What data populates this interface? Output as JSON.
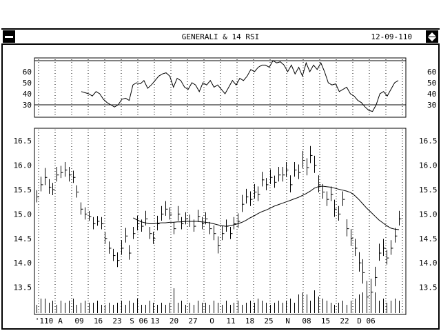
{
  "window": {
    "title": "GENERALI & 14 RSI",
    "date": "12-09-110"
  },
  "chart_data": [
    {
      "type": "line",
      "panel": "rsi",
      "ylim": [
        20,
        70
      ],
      "ticks": [
        "60",
        "50",
        "40",
        "30"
      ],
      "tick_values": [
        60,
        50,
        40,
        30
      ],
      "reference_lines": [
        30,
        70
      ],
      "grid": "vertical-dotted",
      "series": [
        {
          "values": [
            42,
            41,
            40,
            38,
            42,
            40,
            35,
            32,
            30,
            28,
            30,
            35,
            36,
            34,
            48,
            50,
            49,
            52,
            45,
            48,
            52,
            56,
            58,
            59,
            56,
            46,
            54,
            52,
            46,
            44,
            50,
            48,
            42,
            50,
            48,
            52,
            46,
            48,
            44,
            40,
            46,
            52,
            48,
            54,
            52,
            56,
            62,
            60,
            64,
            66,
            66,
            64,
            70,
            68,
            69,
            66,
            60,
            66,
            58,
            64,
            56,
            68,
            60,
            66,
            62,
            68,
            60,
            50,
            48,
            49,
            42,
            44,
            46,
            40,
            38,
            34,
            32,
            28,
            25,
            24,
            30,
            40,
            42,
            38,
            44,
            50,
            52
          ]
        }
      ]
    },
    {
      "type": "bar",
      "subtype": "ohlc",
      "panel": "price",
      "ylim": [
        13.0,
        16.7
      ],
      "ticks": [
        "16.5",
        "16.0",
        "15.5",
        "15.0",
        "14.5",
        "14.0",
        "13.5"
      ],
      "tick_values": [
        16.5,
        16.0,
        15.5,
        15.0,
        14.5,
        14.0,
        13.5
      ],
      "grid": "vertical-dotted",
      "x_labels": [
        "'110",
        "A",
        "09",
        "16",
        "23",
        "S 06",
        "13",
        "20",
        "27",
        "O",
        "11",
        "18",
        "25",
        "N",
        "08",
        "15",
        "22",
        "D 06"
      ],
      "close": [
        15.35,
        15.6,
        15.75,
        15.55,
        15.5,
        15.8,
        15.85,
        15.9,
        15.8,
        15.75,
        15.45,
        15.1,
        15.0,
        14.95,
        14.8,
        14.85,
        14.8,
        14.5,
        14.3,
        14.15,
        14.05,
        14.3,
        14.55,
        14.2,
        14.6,
        14.8,
        14.75,
        14.9,
        14.6,
        14.5,
        14.8,
        15.0,
        15.1,
        15.0,
        14.7,
        15.0,
        14.8,
        14.9,
        14.85,
        14.75,
        14.95,
        14.8,
        14.9,
        14.7,
        14.6,
        14.35,
        14.6,
        14.75,
        14.6,
        14.8,
        14.85,
        15.2,
        15.35,
        15.3,
        15.45,
        15.4,
        15.7,
        15.6,
        15.75,
        15.65,
        15.8,
        15.8,
        15.9,
        15.6,
        15.9,
        15.85,
        16.1,
        15.95,
        16.2,
        16.0,
        15.6,
        15.45,
        15.3,
        15.4,
        15.1,
        15.0,
        15.3,
        14.7,
        14.5,
        14.3,
        14.0,
        13.8,
        13.3,
        13.4,
        13.7,
        14.2,
        14.3,
        14.1,
        14.3,
        14.55,
        14.9
      ],
      "spread": [
        0.25,
        0.3,
        0.35,
        0.3,
        0.25,
        0.3,
        0.25,
        0.3,
        0.3,
        0.25,
        0.25,
        0.25,
        0.25,
        0.2,
        0.25,
        0.2,
        0.25,
        0.25,
        0.25,
        0.25,
        0.3,
        0.3,
        0.3,
        0.3,
        0.25,
        0.3,
        0.25,
        0.3,
        0.25,
        0.25,
        0.3,
        0.3,
        0.3,
        0.25,
        0.25,
        0.3,
        0.25,
        0.25,
        0.25,
        0.25,
        0.25,
        0.25,
        0.25,
        0.25,
        0.3,
        0.35,
        0.3,
        0.25,
        0.25,
        0.25,
        0.3,
        0.35,
        0.3,
        0.3,
        0.3,
        0.3,
        0.3,
        0.25,
        0.3,
        0.25,
        0.3,
        0.3,
        0.3,
        0.35,
        0.3,
        0.3,
        0.35,
        0.35,
        0.35,
        0.35,
        0.35,
        0.3,
        0.3,
        0.3,
        0.35,
        0.3,
        0.3,
        0.35,
        0.35,
        0.35,
        0.4,
        0.5,
        0.6,
        0.5,
        0.4,
        0.35,
        0.35,
        0.3,
        0.3,
        0.3,
        0.3
      ],
      "moving_average": {
        "start_index": 24,
        "values": [
          14.92,
          14.88,
          14.84,
          14.82,
          14.8,
          14.8,
          14.81,
          14.82,
          14.82,
          14.83,
          14.83,
          14.84,
          14.84,
          14.85,
          14.85,
          14.85,
          14.85,
          14.84,
          14.83,
          14.82,
          14.8,
          14.78,
          14.76,
          14.75,
          14.76,
          14.78,
          14.8,
          14.83,
          14.87,
          14.92,
          14.96,
          15.01,
          15.05,
          15.08,
          15.12,
          15.16,
          15.19,
          15.22,
          15.25,
          15.28,
          15.31,
          15.34,
          15.38,
          15.42,
          15.47,
          15.53,
          15.56,
          15.57,
          15.56,
          15.55,
          15.53,
          15.51,
          15.49,
          15.47,
          15.44,
          15.38,
          15.3,
          15.21,
          15.12,
          15.04,
          14.96,
          14.88,
          14.82,
          14.76,
          14.71,
          14.69,
          14.68
        ]
      },
      "volume": [
        0.2,
        0.35,
        0.35,
        0.25,
        0.3,
        0.2,
        0.3,
        0.25,
        0.3,
        0.35,
        0.2,
        0.25,
        0.3,
        0.25,
        0.25,
        0.3,
        0.2,
        0.2,
        0.25,
        0.2,
        0.25,
        0.3,
        0.2,
        0.3,
        0.25,
        0.35,
        0.2,
        0.2,
        0.3,
        0.25,
        0.2,
        0.25,
        0.2,
        0.25,
        0.6,
        0.25,
        0.3,
        0.2,
        0.25,
        0.2,
        0.3,
        0.25,
        0.25,
        0.2,
        0.3,
        0.25,
        0.2,
        0.3,
        0.2,
        0.25,
        0.3,
        0.2,
        0.25,
        0.3,
        0.25,
        0.35,
        0.3,
        0.25,
        0.2,
        0.25,
        0.3,
        0.25,
        0.3,
        0.35,
        0.25,
        0.45,
        0.5,
        0.45,
        0.3,
        0.55,
        0.4,
        0.35,
        0.3,
        0.25,
        0.2,
        0.25,
        0.3,
        0.2,
        0.3,
        0.35,
        0.45,
        0.5,
        0.55,
        0.6,
        0.5,
        0.3,
        0.35,
        0.25,
        0.3,
        0.35,
        0.3
      ]
    }
  ]
}
